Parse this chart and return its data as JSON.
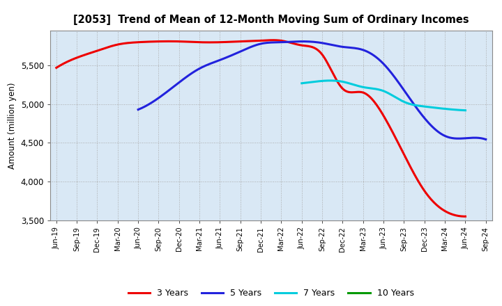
{
  "title": "[2053]  Trend of Mean of 12-Month Moving Sum of Ordinary Incomes",
  "ylabel": "Amount (million yen)",
  "fig_bg_color": "#ffffff",
  "plot_bg_color": "#d9e8f5",
  "ylim": [
    3500,
    5950
  ],
  "yticks": [
    3500,
    4000,
    4500,
    5000,
    5500
  ],
  "x_labels": [
    "Jun-19",
    "Sep-19",
    "Dec-19",
    "Mar-20",
    "Jun-20",
    "Sep-20",
    "Dec-20",
    "Mar-21",
    "Jun-21",
    "Sep-21",
    "Dec-21",
    "Mar-22",
    "Jun-22",
    "Sep-22",
    "Dec-22",
    "Mar-23",
    "Jun-23",
    "Sep-23",
    "Dec-23",
    "Mar-24",
    "Jun-24",
    "Sep-24"
  ],
  "series": {
    "3 Years": {
      "color": "#ee0000",
      "linewidth": 2.2,
      "data": [
        5470,
        5600,
        5690,
        5770,
        5800,
        5810,
        5810,
        5800,
        5800,
        5810,
        5820,
        5820,
        5760,
        5640,
        5200,
        5150,
        4850,
        4350,
        3880,
        3620,
        3550,
        null
      ]
    },
    "5 Years": {
      "color": "#2222dd",
      "linewidth": 2.2,
      "data": [
        null,
        null,
        null,
        null,
        4930,
        5080,
        5280,
        5460,
        5570,
        5680,
        5780,
        5800,
        5810,
        5790,
        5740,
        5700,
        5520,
        5180,
        4820,
        4590,
        4560,
        4545
      ]
    },
    "7 Years": {
      "color": "#00ccdd",
      "linewidth": 2.2,
      "data": [
        null,
        null,
        null,
        null,
        null,
        null,
        null,
        null,
        null,
        null,
        null,
        null,
        5270,
        5300,
        5290,
        5220,
        5170,
        5030,
        4970,
        4940,
        4920,
        null
      ]
    },
    "10 Years": {
      "color": "#009900",
      "linewidth": 2.2,
      "data": [
        null,
        null,
        null,
        null,
        null,
        null,
        null,
        null,
        null,
        null,
        null,
        null,
        null,
        null,
        null,
        null,
        null,
        null,
        null,
        null,
        null,
        null
      ]
    }
  },
  "legend": {
    "labels": [
      "3 Years",
      "5 Years",
      "7 Years",
      "10 Years"
    ],
    "colors": [
      "#ee0000",
      "#2222dd",
      "#00ccdd",
      "#009900"
    ],
    "fontsize": 9,
    "handlelength": 2.5,
    "ncol": 4
  }
}
